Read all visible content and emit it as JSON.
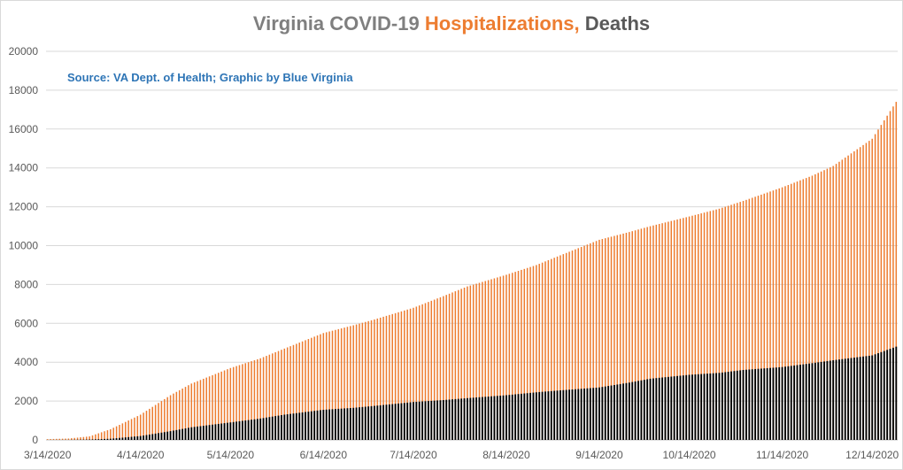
{
  "chart_data": {
    "type": "bar",
    "title": {
      "part1": "Virginia COVID-19 ",
      "part2": "Hospitalizations,",
      "part3": " Deaths"
    },
    "source_note": "Source: VA Dept. of Health; Graphic by Blue Virginia",
    "xlabel": "",
    "ylabel": "",
    "ylim": [
      0,
      20000
    ],
    "yticks": [
      0,
      2000,
      4000,
      6000,
      8000,
      10000,
      12000,
      14000,
      16000,
      18000,
      20000
    ],
    "x_range": [
      "3/14/2020",
      "12/22/2020"
    ],
    "xtick_labels": [
      "3/14/2020",
      "4/14/2020",
      "5/14/2020",
      "6/14/2020",
      "7/14/2020",
      "8/14/2020",
      "9/14/2020",
      "10/14/2020",
      "11/14/2020",
      "12/14/2020"
    ],
    "grid": true,
    "legend": "none",
    "colors": {
      "hospitalizations": "#ed7d31",
      "deaths": "#000000",
      "title_grey": "#7f7f7f",
      "title_orange": "#ed7d31",
      "title_dark": "#595959",
      "source": "#2e75b6",
      "grid": "#d9d9d9",
      "tick": "#595959"
    },
    "series": [
      {
        "key": "hospitalizations",
        "dates": [
          "3/14/2020",
          "3/21/2020",
          "3/28/2020",
          "4/4/2020",
          "4/14/2020",
          "4/24/2020",
          "5/1/2020",
          "5/14/2020",
          "5/24/2020",
          "6/1/2020",
          "6/14/2020",
          "6/24/2020",
          "7/1/2020",
          "7/14/2020",
          "7/24/2020",
          "8/1/2020",
          "8/14/2020",
          "8/24/2020",
          "9/1/2020",
          "9/14/2020",
          "9/24/2020",
          "10/1/2020",
          "10/14/2020",
          "10/24/2020",
          "11/1/2020",
          "11/14/2020",
          "11/24/2020",
          "12/1/2020",
          "12/14/2020",
          "12/22/2020"
        ],
        "values": [
          40,
          70,
          180,
          550,
          1300,
          2300,
          2900,
          3700,
          4200,
          4700,
          5500,
          5900,
          6200,
          6800,
          7400,
          7900,
          8500,
          9000,
          9500,
          10300,
          10700,
          11000,
          11500,
          11900,
          12300,
          13000,
          13600,
          14100,
          15500,
          17400
        ]
      },
      {
        "key": "deaths",
        "dates": [
          "3/14/2020",
          "3/21/2020",
          "3/28/2020",
          "4/4/2020",
          "4/14/2020",
          "4/24/2020",
          "5/1/2020",
          "5/14/2020",
          "5/24/2020",
          "6/1/2020",
          "6/14/2020",
          "6/24/2020",
          "7/1/2020",
          "7/14/2020",
          "7/24/2020",
          "8/1/2020",
          "8/14/2020",
          "8/24/2020",
          "9/1/2020",
          "9/14/2020",
          "9/24/2020",
          "10/1/2020",
          "10/14/2020",
          "10/24/2020",
          "11/1/2020",
          "11/14/2020",
          "11/24/2020",
          "12/1/2020",
          "12/14/2020",
          "12/22/2020"
        ],
        "values": [
          1,
          5,
          20,
          60,
          200,
          450,
          650,
          900,
          1100,
          1300,
          1550,
          1650,
          1750,
          1950,
          2050,
          2150,
          2300,
          2450,
          2550,
          2700,
          2950,
          3150,
          3350,
          3450,
          3600,
          3750,
          3950,
          4100,
          4350,
          4800
        ]
      }
    ]
  }
}
